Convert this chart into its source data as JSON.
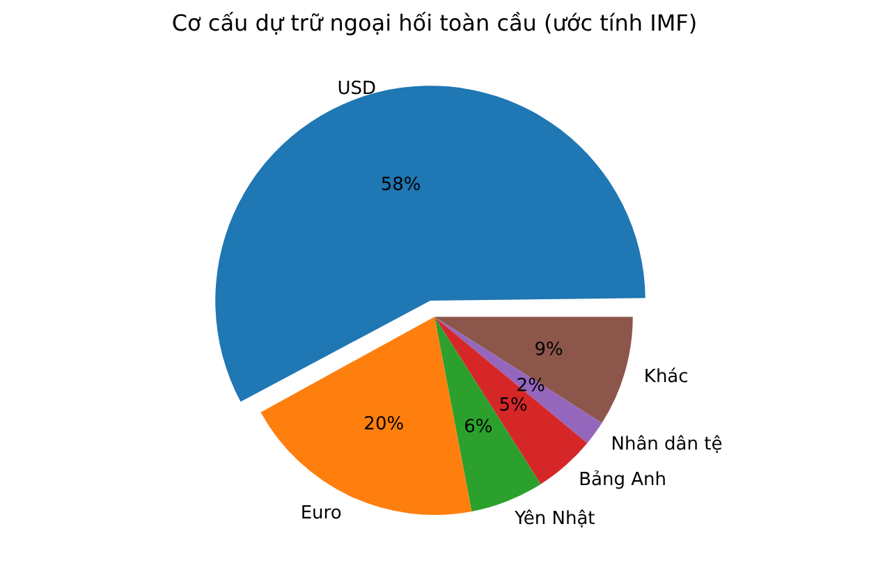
{
  "chart_data": {
    "type": "pie",
    "title": "Cơ cấu dự trữ ngoại hối toàn cầu (ước tính IMF)",
    "categories": [
      "USD",
      "Euro",
      "Yên Nhật",
      "Bảng Anh",
      "Nhân dân tệ",
      "Khác"
    ],
    "values": [
      58,
      20,
      6,
      5,
      2,
      9
    ],
    "colors": [
      "#1f77b4",
      "#ff7f0e",
      "#2ca02c",
      "#d62728",
      "#9467bd",
      "#8c564b"
    ],
    "value_labels": [
      "58%",
      "20%",
      "6%",
      "5%",
      "2%",
      "9%"
    ],
    "legend": false
  }
}
